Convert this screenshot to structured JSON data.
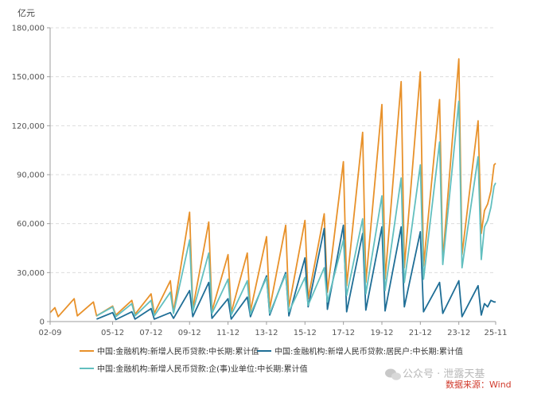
{
  "chart_data": {
    "type": "line",
    "unit_label": "亿元",
    "ylim": [
      0,
      180000
    ],
    "yticks": [
      0,
      30000,
      60000,
      90000,
      120000,
      150000,
      180000
    ],
    "ytick_labels": [
      "0",
      "30,000",
      "60,000",
      "90,000",
      "120,000",
      "150,000",
      "180,000"
    ],
    "xlim": [
      2002.667,
      2025.833
    ],
    "xticks": [
      2002.667,
      2005.917,
      2007.917,
      2009.917,
      2011.917,
      2013.917,
      2015.917,
      2017.917,
      2019.917,
      2021.917,
      2023.917,
      2025.833
    ],
    "xtick_labels": [
      "02-09",
      "05-12",
      "07-12",
      "09-12",
      "11-12",
      "13-12",
      "15-12",
      "17-12",
      "19-12",
      "21-12",
      "23-12",
      "25-11"
    ],
    "grid": true,
    "legend_position": "bottom",
    "series": [
      {
        "name": "中国:金融机构:新增人民币贷款:中长期:累计值",
        "color": "#e8912a",
        "points": [
          [
            2002.667,
            5500
          ],
          [
            2002.917,
            8500
          ],
          [
            2003.083,
            3000
          ],
          [
            2003.917,
            14000
          ],
          [
            2004.083,
            3500
          ],
          [
            2004.917,
            12000
          ],
          [
            2005.083,
            3500
          ],
          [
            2005.917,
            9500
          ],
          [
            2006.083,
            4000
          ],
          [
            2006.917,
            13000
          ],
          [
            2007.083,
            4500
          ],
          [
            2007.917,
            17000
          ],
          [
            2008.083,
            5000
          ],
          [
            2008.917,
            25000
          ],
          [
            2009.083,
            6000
          ],
          [
            2009.917,
            67000
          ],
          [
            2010.083,
            8000
          ],
          [
            2010.917,
            61000
          ],
          [
            2011.083,
            6500
          ],
          [
            2011.917,
            41000
          ],
          [
            2012.083,
            5500
          ],
          [
            2012.917,
            42000
          ],
          [
            2013.083,
            6500
          ],
          [
            2013.917,
            52000
          ],
          [
            2014.083,
            8000
          ],
          [
            2014.917,
            59000
          ],
          [
            2015.083,
            9000
          ],
          [
            2015.917,
            62000
          ],
          [
            2016.083,
            14000
          ],
          [
            2016.917,
            66000
          ],
          [
            2017.083,
            18000
          ],
          [
            2017.917,
            98000
          ],
          [
            2018.083,
            22000
          ],
          [
            2018.917,
            116000
          ],
          [
            2019.083,
            24000
          ],
          [
            2019.917,
            133000
          ],
          [
            2020.083,
            26000
          ],
          [
            2020.917,
            147000
          ],
          [
            2021.083,
            33000
          ],
          [
            2021.917,
            153000
          ],
          [
            2022.083,
            34000
          ],
          [
            2022.917,
            136000
          ],
          [
            2023.083,
            38000
          ],
          [
            2023.917,
            161000
          ],
          [
            2024.083,
            41000
          ],
          [
            2024.917,
            123000
          ],
          [
            2025.083,
            54000
          ],
          [
            2025.25,
            68000
          ],
          [
            2025.417,
            72000
          ],
          [
            2025.583,
            80000
          ],
          [
            2025.75,
            96000
          ],
          [
            2025.833,
            97000
          ]
        ]
      },
      {
        "name": "中国:金融机构:新增人民币贷款:居民户:中长期:累计值",
        "color": "#1f6e96",
        "points": [
          [
            2005.083,
            1500
          ],
          [
            2005.917,
            5500
          ],
          [
            2006.083,
            1200
          ],
          [
            2006.917,
            6000
          ],
          [
            2007.083,
            1500
          ],
          [
            2007.917,
            8000
          ],
          [
            2008.083,
            1500
          ],
          [
            2008.917,
            5500
          ],
          [
            2009.083,
            2000
          ],
          [
            2009.917,
            19000
          ],
          [
            2010.083,
            3000
          ],
          [
            2010.917,
            24000
          ],
          [
            2011.083,
            2000
          ],
          [
            2011.917,
            14000
          ],
          [
            2012.083,
            1500
          ],
          [
            2012.917,
            15000
          ],
          [
            2013.083,
            3000
          ],
          [
            2013.917,
            28000
          ],
          [
            2014.083,
            4000
          ],
          [
            2014.917,
            30000
          ],
          [
            2015.083,
            3500
          ],
          [
            2015.917,
            39000
          ],
          [
            2016.083,
            9000
          ],
          [
            2016.917,
            57000
          ],
          [
            2017.083,
            7500
          ],
          [
            2017.917,
            59000
          ],
          [
            2018.083,
            6000
          ],
          [
            2018.917,
            54000
          ],
          [
            2019.083,
            7000
          ],
          [
            2019.917,
            58000
          ],
          [
            2020.083,
            6500
          ],
          [
            2020.917,
            58000
          ],
          [
            2021.083,
            9000
          ],
          [
            2021.917,
            55000
          ],
          [
            2022.083,
            6000
          ],
          [
            2022.917,
            24000
          ],
          [
            2023.083,
            5000
          ],
          [
            2023.917,
            25000
          ],
          [
            2024.083,
            3000
          ],
          [
            2024.917,
            22000
          ],
          [
            2025.083,
            4000
          ],
          [
            2025.25,
            11000
          ],
          [
            2025.417,
            9000
          ],
          [
            2025.583,
            13000
          ],
          [
            2025.75,
            12000
          ],
          [
            2025.833,
            12000
          ]
        ]
      },
      {
        "name": "中国:金融机构:新增人民币贷款:企(事)业单位:中长期:累计值",
        "color": "#62bfbf",
        "points": [
          [
            2005.083,
            3500
          ],
          [
            2005.917,
            9000
          ],
          [
            2006.083,
            3000
          ],
          [
            2006.917,
            11000
          ],
          [
            2007.083,
            3500
          ],
          [
            2007.917,
            13000
          ],
          [
            2008.083,
            3500
          ],
          [
            2008.917,
            18000
          ],
          [
            2009.083,
            5000
          ],
          [
            2009.917,
            50000
          ],
          [
            2010.083,
            6000
          ],
          [
            2010.917,
            42000
          ],
          [
            2011.083,
            5000
          ],
          [
            2011.917,
            26000
          ],
          [
            2012.083,
            4000
          ],
          [
            2012.917,
            25000
          ],
          [
            2013.083,
            4500
          ],
          [
            2013.917,
            27000
          ],
          [
            2014.083,
            5000
          ],
          [
            2014.917,
            29000
          ],
          [
            2015.083,
            6000
          ],
          [
            2015.917,
            27000
          ],
          [
            2016.083,
            10000
          ],
          [
            2016.917,
            33000
          ],
          [
            2017.083,
            12000
          ],
          [
            2017.917,
            50000
          ],
          [
            2018.083,
            16000
          ],
          [
            2018.917,
            63000
          ],
          [
            2019.083,
            17000
          ],
          [
            2019.917,
            77000
          ],
          [
            2020.083,
            19000
          ],
          [
            2020.917,
            88000
          ],
          [
            2021.083,
            24000
          ],
          [
            2021.917,
            96000
          ],
          [
            2022.083,
            26000
          ],
          [
            2022.917,
            110000
          ],
          [
            2023.083,
            35000
          ],
          [
            2023.917,
            135000
          ],
          [
            2024.083,
            33000
          ],
          [
            2024.917,
            101000
          ],
          [
            2025.083,
            38000
          ],
          [
            2025.25,
            58000
          ],
          [
            2025.417,
            62000
          ],
          [
            2025.583,
            70000
          ],
          [
            2025.75,
            83000
          ],
          [
            2025.833,
            85000
          ]
        ]
      }
    ]
  },
  "watermark": "公众号 · 泄露天基",
  "source_label": "数据来源：Wind"
}
